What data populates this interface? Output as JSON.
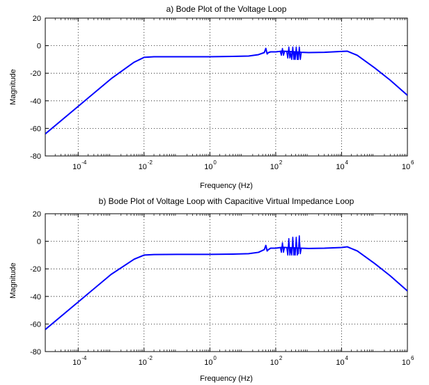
{
  "chart_data": [
    {
      "type": "line",
      "title": "a) Bode Plot of the Voltage Loop",
      "xlabel": "Frequency (Hz)",
      "ylabel": "Magnitude",
      "xscale": "log",
      "xlim": [
        1e-05,
        1000000
      ],
      "ylim": [
        -80,
        20
      ],
      "xticks": [
        "10",
        "10",
        "10",
        "10",
        "10",
        "10"
      ],
      "xtick_exponents": [
        "-4",
        "-2",
        "0",
        "2",
        "4",
        "6"
      ],
      "yticks": [
        "20",
        "0",
        "-20",
        "-40",
        "-60",
        "-80"
      ],
      "grid": true,
      "series": [
        {
          "color": "#0000ff",
          "x": [
            1e-05,
            0.0001,
            0.001,
            0.005,
            0.01,
            0.02,
            0.1,
            1,
            5,
            15,
            30,
            45,
            50,
            55,
            60,
            70,
            80,
            100,
            130,
            150,
            170,
            200,
            250,
            300,
            400,
            600,
            1000,
            3000,
            10000,
            15000,
            30000,
            100000,
            300000,
            1000000
          ],
          "y": [
            -64,
            -44,
            -24,
            -12,
            -8.5,
            -8,
            -8,
            -8,
            -7.8,
            -7.5,
            -6.5,
            -5,
            -2,
            -6,
            -5,
            -4.5,
            -4.5,
            -4.5,
            -4.2,
            -4,
            -4,
            -4.1,
            -4.2,
            -4.3,
            -4.5,
            -4.8,
            -5,
            -4.8,
            -4.2,
            -4,
            -7,
            -16,
            -25,
            -36
          ]
        }
      ],
      "oscillations": [
        {
          "x": 160,
          "lo": -7,
          "hi": -2
        },
        {
          "x": 250,
          "lo": -9,
          "hi": -1
        },
        {
          "x": 330,
          "lo": -10,
          "hi": -1
        },
        {
          "x": 420,
          "lo": -10,
          "hi": -1
        },
        {
          "x": 520,
          "lo": -10,
          "hi": -1
        }
      ]
    },
    {
      "type": "line",
      "title": "b) Bode Plot of Voltage Loop with Capacitive Virtual Impedance Loop",
      "xlabel": "Frequency  (Hz)",
      "ylabel": "Magnitude",
      "xscale": "log",
      "xlim": [
        1e-05,
        1000000
      ],
      "ylim": [
        -80,
        20
      ],
      "xticks": [
        "10",
        "10",
        "10",
        "10",
        "10",
        "10"
      ],
      "xtick_exponents": [
        "-4",
        "-2",
        "0",
        "2",
        "4",
        "6"
      ],
      "yticks": [
        "20",
        "0",
        "-20",
        "-40",
        "-60",
        "-80"
      ],
      "grid": true,
      "series": [
        {
          "color": "#0000ff",
          "x": [
            1e-05,
            0.0001,
            0.001,
            0.005,
            0.01,
            0.02,
            0.1,
            1,
            5,
            15,
            30,
            45,
            50,
            55,
            60,
            70,
            80,
            100,
            130,
            150,
            170,
            200,
            250,
            300,
            400,
            600,
            1000,
            3000,
            10000,
            15000,
            30000,
            100000,
            300000,
            1000000
          ],
          "y": [
            -64,
            -44,
            -24,
            -13,
            -10,
            -9.6,
            -9.5,
            -9.5,
            -9.3,
            -9,
            -8,
            -6,
            -3,
            -7,
            -6,
            -5,
            -5,
            -5,
            -4.6,
            -4.4,
            -4.4,
            -4.5,
            -4.6,
            -4.7,
            -4.8,
            -5,
            -5.2,
            -5,
            -4.5,
            -4,
            -7,
            -16,
            -25,
            -36
          ]
        }
      ],
      "oscillations": [
        {
          "x": 160,
          "lo": -8,
          "hi": -1
        },
        {
          "x": 250,
          "lo": -10,
          "hi": 2
        },
        {
          "x": 330,
          "lo": -10,
          "hi": 3
        },
        {
          "x": 420,
          "lo": -10,
          "hi": 3
        },
        {
          "x": 520,
          "lo": -9,
          "hi": 4
        }
      ]
    }
  ]
}
